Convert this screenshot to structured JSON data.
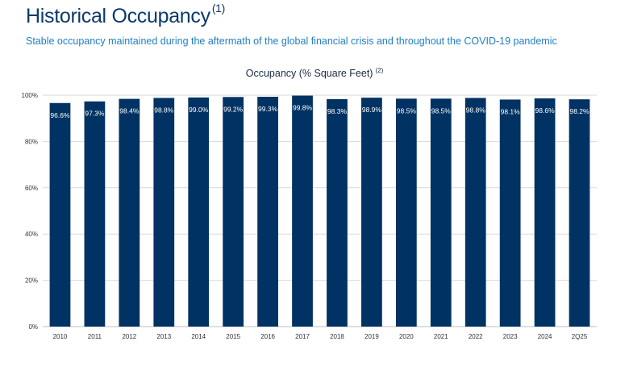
{
  "header": {
    "title": "Historical Occupancy",
    "title_note": "(1)",
    "subtitle": "Stable occupancy maintained during the aftermath of the global financial crisis and throughout the COVID-19 pandemic"
  },
  "colors": {
    "title": "#0b3a6b",
    "subtitle": "#1f7fc0",
    "bar": "#003263",
    "grid": "#d9d9d9"
  },
  "chart_data": {
    "type": "bar",
    "title": "Occupancy (% Square Feet)",
    "title_note": "(2)",
    "categories": [
      "2010",
      "2011",
      "2012",
      "2013",
      "2014",
      "2015",
      "2016",
      "2017",
      "2018",
      "2019",
      "2020",
      "2021",
      "2022",
      "2023",
      "2024",
      "2Q25"
    ],
    "values": [
      96.6,
      97.3,
      98.4,
      98.8,
      99.0,
      99.2,
      99.3,
      99.8,
      98.3,
      98.9,
      98.5,
      98.5,
      98.8,
      98.1,
      98.6,
      98.2
    ],
    "data_labels": [
      "96.6%",
      "97.3%",
      "98.4%",
      "98.8%",
      "99.0%",
      "99.2%",
      "99.3%",
      "99.8%",
      "98.3%",
      "98.9%",
      "98.5%",
      "98.5%",
      "98.8%",
      "98.1%",
      "98.6%",
      "98.2%"
    ],
    "yticks": [
      0,
      20,
      40,
      60,
      80,
      100
    ],
    "ytick_labels": [
      "0%",
      "20%",
      "40%",
      "60%",
      "80%",
      "100%"
    ],
    "ylim": [
      0,
      100
    ],
    "grid": true,
    "legend": "none"
  }
}
